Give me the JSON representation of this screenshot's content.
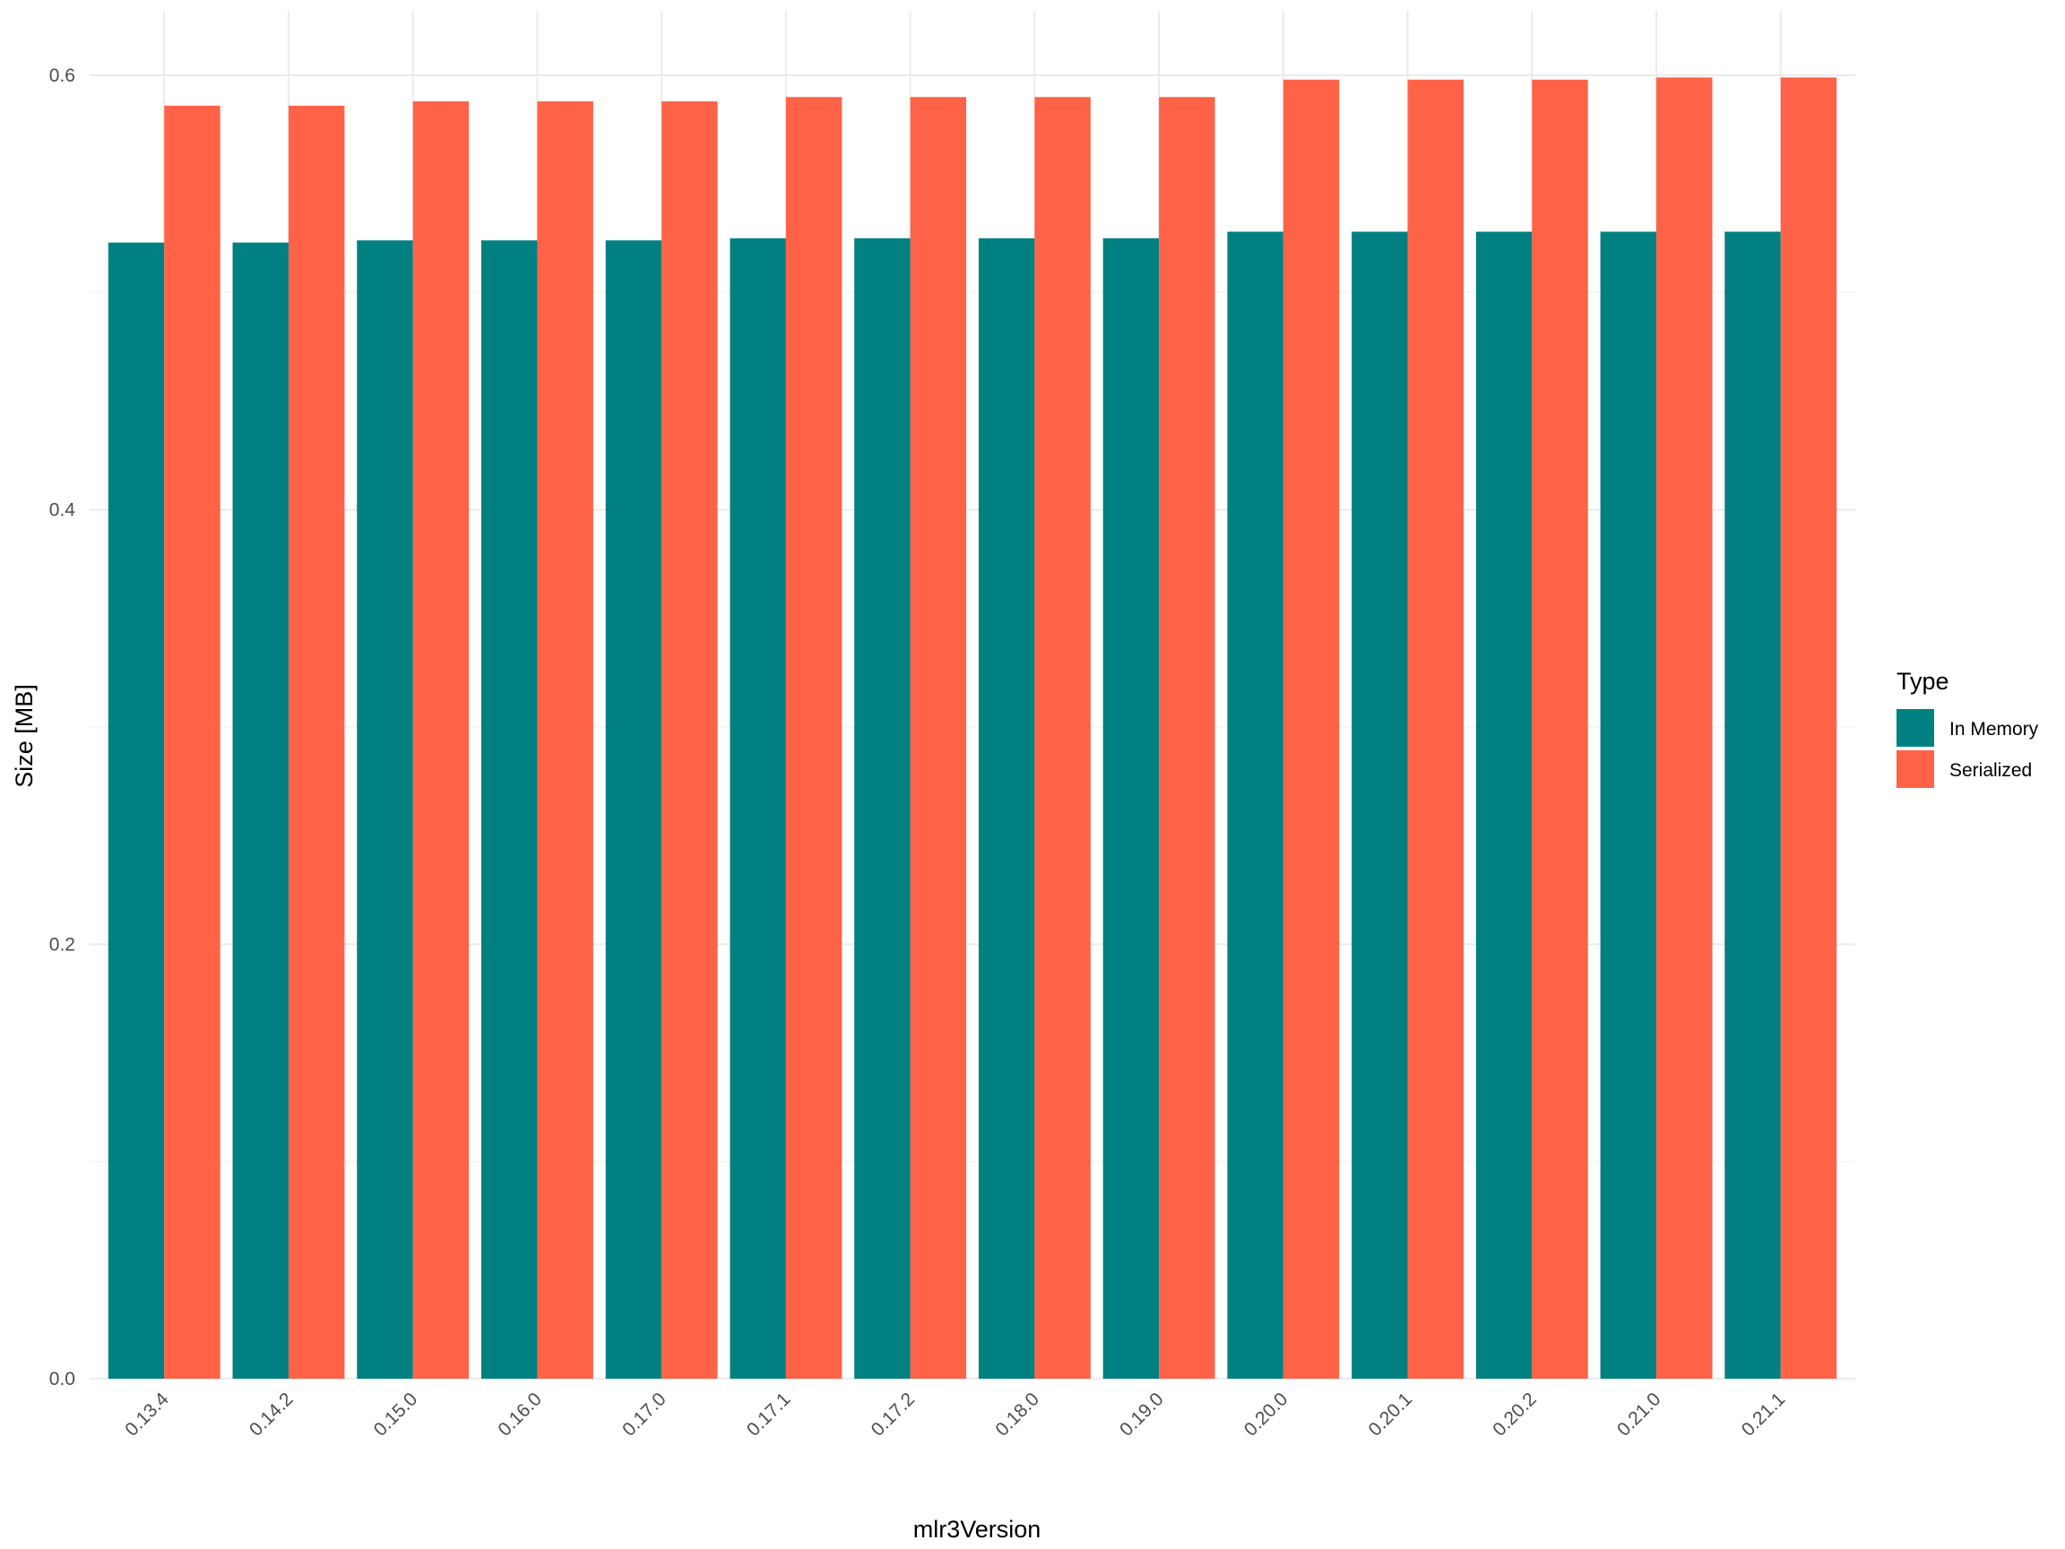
{
  "chart_data": {
    "type": "bar",
    "xlabel": "mlr3Version",
    "ylabel": "Size [MB]",
    "ylim": [
      0,
      0.6
    ],
    "y_ticks": [
      "0.0",
      "0.2",
      "0.4",
      "0.6"
    ],
    "grid": true,
    "legend": {
      "title": "Type",
      "placement": "right"
    },
    "categories": [
      "0.13.4",
      "0.14.2",
      "0.15.0",
      "0.16.0",
      "0.17.0",
      "0.17.1",
      "0.17.2",
      "0.18.0",
      "0.19.0",
      "0.20.0",
      "0.20.1",
      "0.20.2",
      "0.21.0",
      "0.21.1"
    ],
    "series": [
      {
        "name": "In Memory",
        "color": "#008080",
        "values": [
          0.523,
          0.523,
          0.524,
          0.524,
          0.524,
          0.525,
          0.525,
          0.525,
          0.525,
          0.528,
          0.528,
          0.528,
          0.528,
          0.528
        ]
      },
      {
        "name": "Serialized",
        "color": "#FF6347",
        "values": [
          0.586,
          0.586,
          0.588,
          0.588,
          0.588,
          0.59,
          0.59,
          0.59,
          0.59,
          0.598,
          0.598,
          0.598,
          0.599,
          0.599
        ]
      }
    ]
  }
}
